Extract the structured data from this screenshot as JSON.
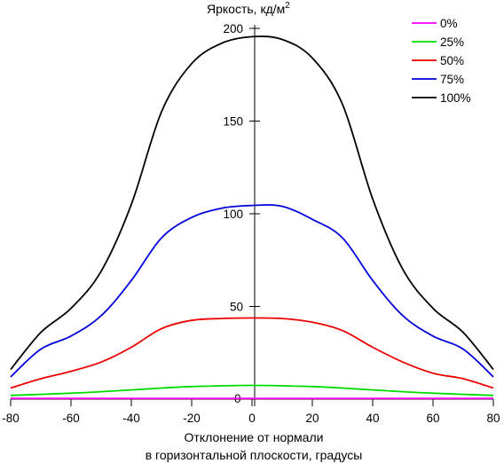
{
  "chart_data": {
    "type": "line",
    "ylabel": "Яркость, кд/м",
    "ylabel_sup": "2",
    "xlabel_lines": [
      "Отклонение от нормали",
      "в горизонтальной плоскости, градусы"
    ],
    "xlim": [
      -80,
      80
    ],
    "ylim": [
      0,
      200
    ],
    "xticks": [
      "-80",
      "-60",
      "-40",
      "-20",
      "0",
      "20",
      "40",
      "60",
      "80"
    ],
    "yticks": [
      "50",
      "100",
      "150",
      "200"
    ],
    "y_zero_label": "0",
    "x": [
      -80,
      -70,
      -60,
      -50,
      -40,
      -30,
      -20,
      -10,
      0,
      10,
      20,
      30,
      40,
      50,
      60,
      70,
      80
    ],
    "series": [
      {
        "name": "0%",
        "color": "#ff00ff",
        "values": [
          0.4,
          0.4,
          0.4,
          0.4,
          0.4,
          0.4,
          0.4,
          0.4,
          0.4,
          0.4,
          0.4,
          0.4,
          0.4,
          0.4,
          0.4,
          0.4,
          0.4
        ]
      },
      {
        "name": "25%",
        "color": "#00dd00",
        "values": [
          2,
          2.6,
          3.2,
          4,
          5,
          6,
          6.8,
          7.2,
          7.4,
          7.2,
          6.8,
          6,
          5,
          4,
          3.2,
          2.6,
          2
        ]
      },
      {
        "name": "50%",
        "color": "#ee0000",
        "values": [
          6,
          11,
          15,
          20,
          28,
          38,
          42.5,
          43.5,
          43.8,
          43.5,
          41.5,
          37,
          28,
          20,
          14,
          11,
          6
        ]
      },
      {
        "name": "75%",
        "color": "#0000dd",
        "values": [
          12,
          27,
          34,
          45,
          64,
          87,
          98,
          103,
          104.5,
          104,
          97,
          87,
          64,
          45,
          34,
          27,
          12
        ]
      },
      {
        "name": "100%",
        "color": "#000000",
        "values": [
          16,
          36,
          49,
          69,
          105,
          155,
          181,
          192,
          195.5,
          194,
          184,
          159,
          108,
          70,
          49,
          36,
          16
        ]
      }
    ]
  }
}
